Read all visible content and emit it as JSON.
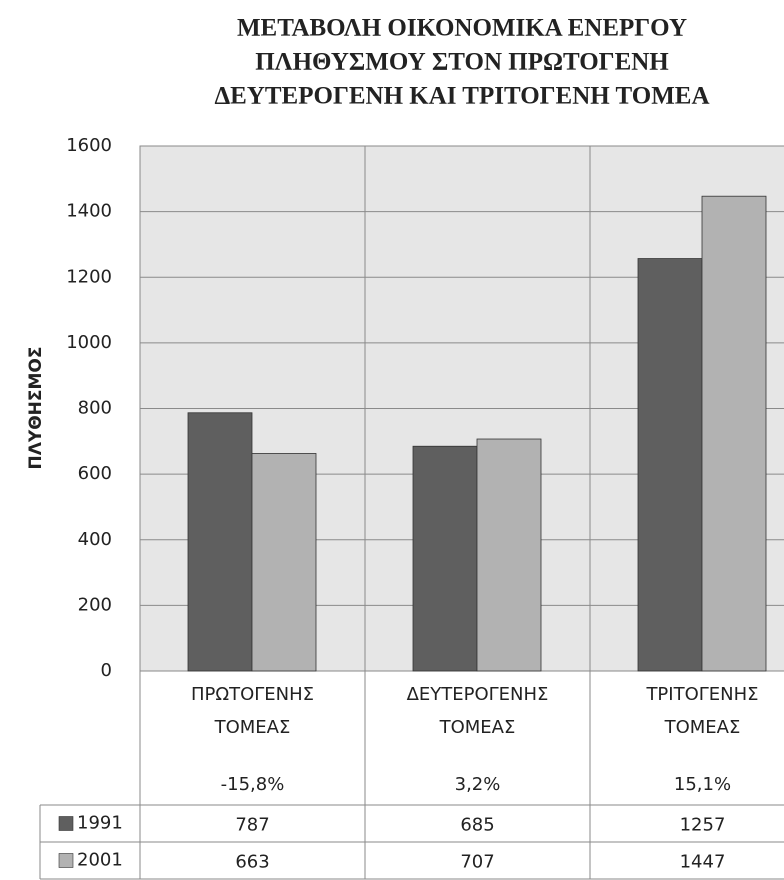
{
  "chart_data": {
    "type": "bar",
    "title": [
      "ΜΕΤΑΒΟΛΗ ΟΙΚΟΝΟΜΙΚΑ ΕΝΕΡΓΟΥ",
      "ΠΛΗΘΥΣΜΟΥ ΣΤΟΝ ΠΡΩΤΟΓΕΝΗ",
      "ΔΕΥΤΕΡΟΓΕΝΗ ΚΑΙ ΤΡΙΤΟΓΕΝΗ ΤΟΜΕΑ"
    ],
    "y_axis_label": "ΠΛΥΘΗΣΜΟΣ",
    "categories": [
      "ΠΡΩΤΟΓΕΝΗΣ ΤΟΜΕΑΣ",
      "ΔΕΥΤΕΡΟΓΕΝΗΣ ΤΟΜΕΑΣ",
      "ΤΡΙΤΟΓΕΝΗΣ ΤΟΜΕΑΣ"
    ],
    "change_labels": [
      "-15,8%",
      "3,2%",
      "15,1%"
    ],
    "series": [
      {
        "name": "1991",
        "color": "#5f5f5f",
        "values": [
          787,
          685,
          1257
        ]
      },
      {
        "name": "2001",
        "color": "#b2b2b2",
        "values": [
          663,
          707,
          1447
        ]
      }
    ],
    "ylim": [
      0,
      1600
    ],
    "yticks": [
      0,
      200,
      400,
      600,
      800,
      1000,
      1200,
      1400,
      1600
    ],
    "grid": true
  }
}
